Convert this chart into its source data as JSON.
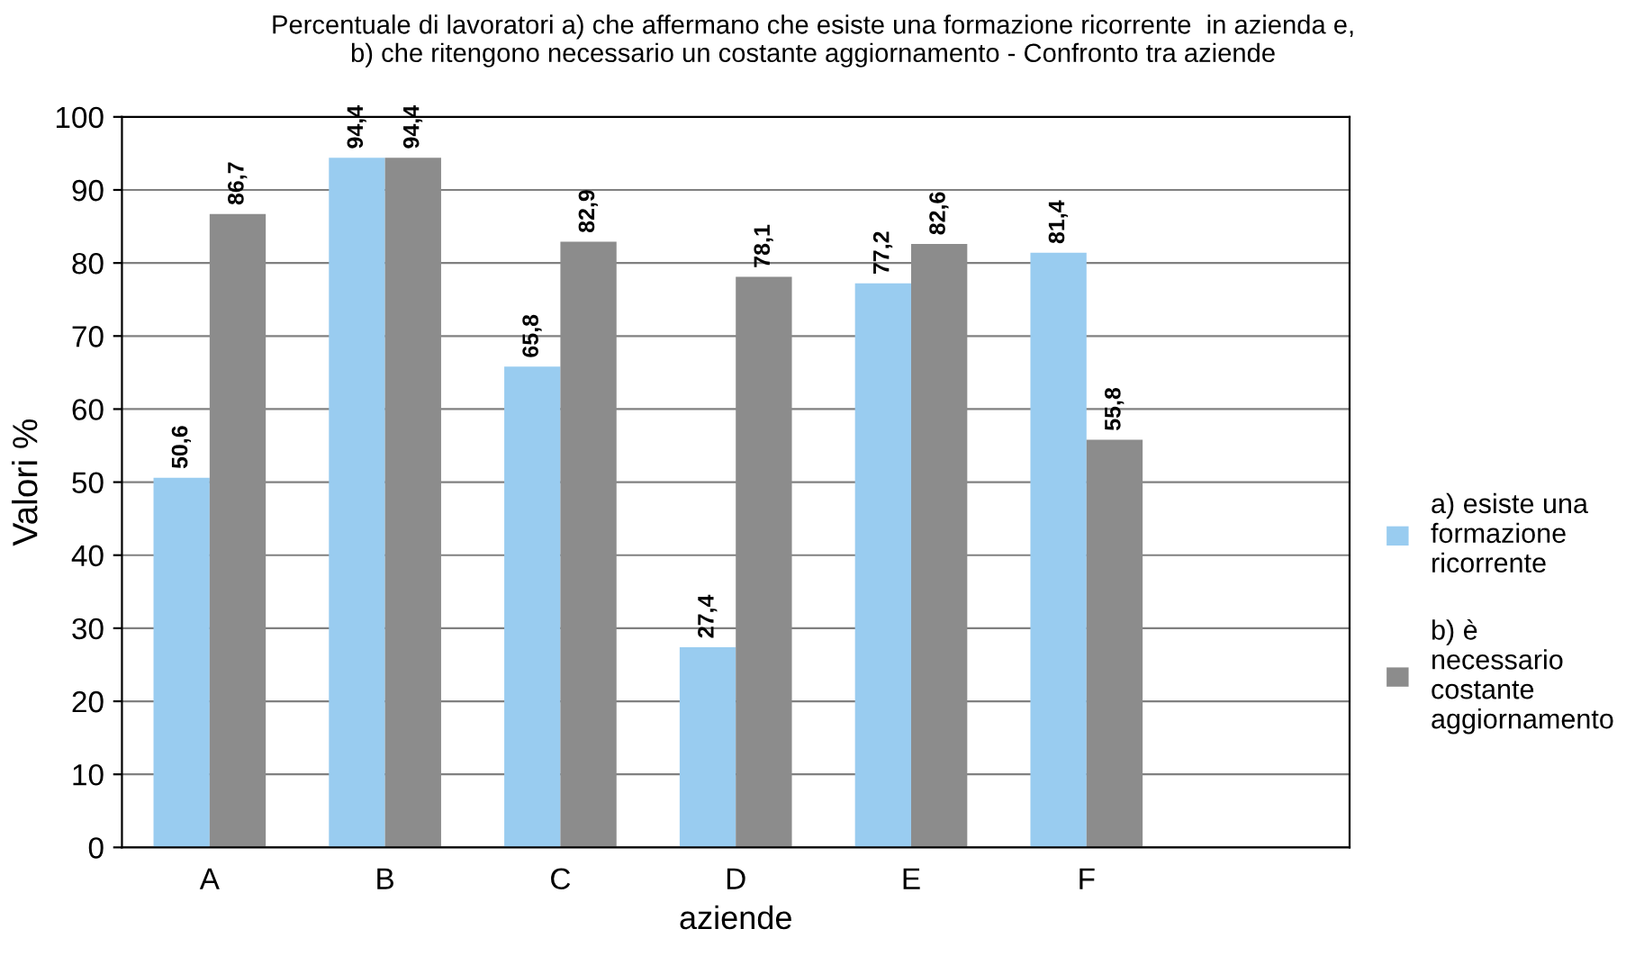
{
  "chart_data": {
    "type": "bar",
    "title": "Percentuale di lavoratori a) che affermano che esiste una formazione ricorrente  in azienda e,\nb) che ritengono necessario un costante aggiornamento - Confronto tra aziende",
    "xlabel": "aziende",
    "ylabel": "Valori %",
    "categories": [
      "A",
      "B",
      "C",
      "D",
      "E",
      "F",
      null
    ],
    "series": [
      {
        "name": "a) esiste una formazione ricorrente",
        "color": "#99ccf0",
        "values": [
          50.6,
          94.4,
          65.8,
          27.4,
          77.2,
          81.4,
          null
        ],
        "value_labels": [
          "50,6",
          "94,4",
          "65,8",
          "27,4",
          "77,2",
          "81,4",
          null
        ]
      },
      {
        "name": "b) è necessario costante aggiornamento",
        "color": "#8c8c8c",
        "values": [
          86.7,
          94.4,
          82.9,
          78.1,
          82.6,
          55.8,
          null
        ],
        "value_labels": [
          "86,7",
          "94,4",
          "82,9",
          "78,1",
          "82,6",
          "55,8",
          null
        ]
      }
    ],
    "ylim": [
      0,
      100
    ],
    "yticks": [
      0,
      10,
      20,
      30,
      40,
      50,
      60,
      70,
      80,
      90,
      100
    ],
    "grid": "y",
    "legend": "right"
  }
}
